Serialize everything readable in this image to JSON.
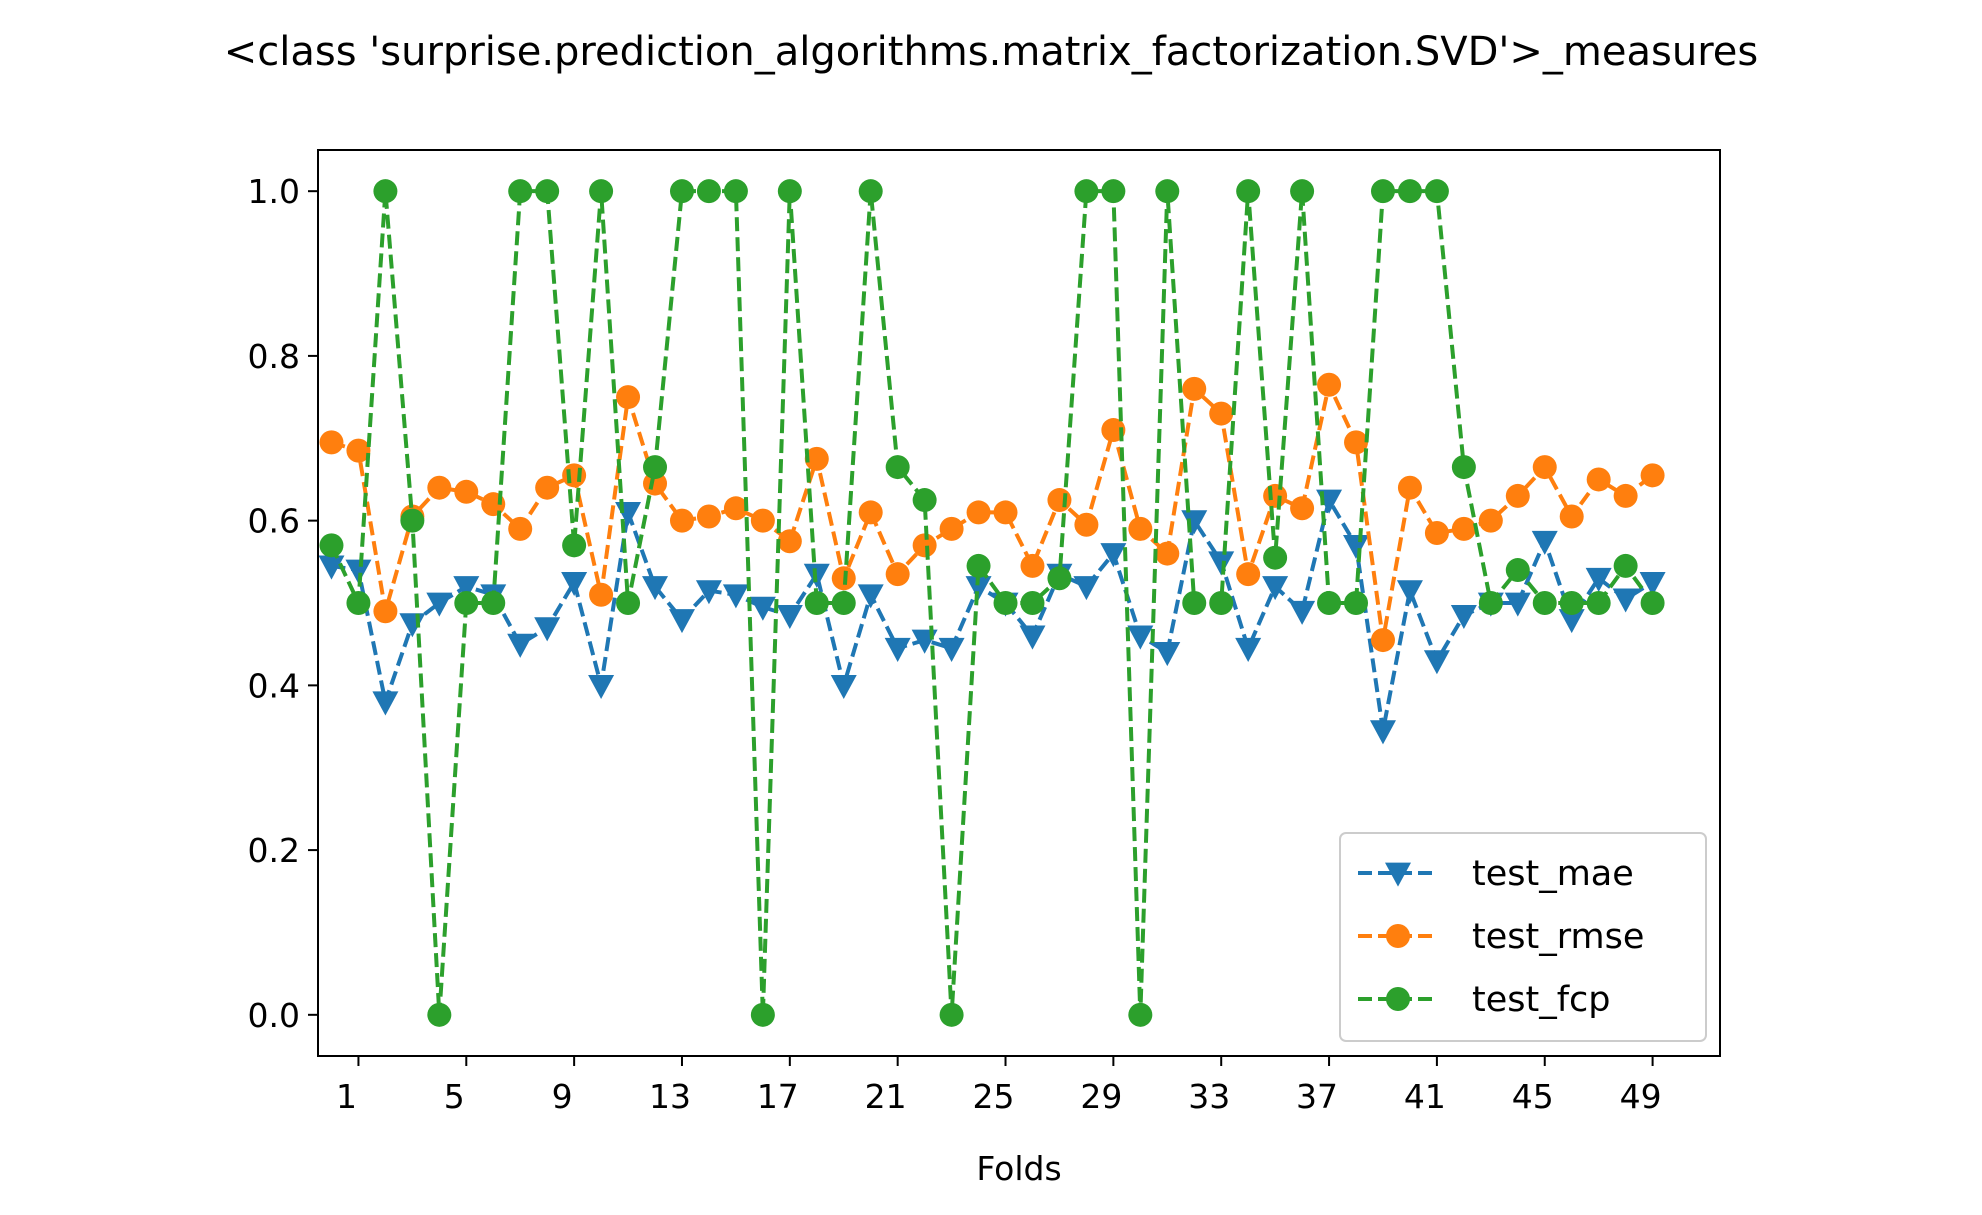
{
  "chart_data": {
    "type": "line",
    "title": "<class 'surprise.prediction_algorithms.matrix_factorization.SVD'>_measures",
    "xlabel": "Folds",
    "ylabel": "",
    "xlim": [
      -0.5,
      51.5
    ],
    "ylim": [
      -0.05,
      1.05
    ],
    "xticks": [
      1,
      5,
      9,
      13,
      17,
      21,
      25,
      29,
      33,
      37,
      41,
      45,
      49
    ],
    "yticks": [
      0.0,
      0.2,
      0.4,
      0.6,
      0.8,
      1.0
    ],
    "ytick_labels": [
      "0.0",
      "0.2",
      "0.4",
      "0.6",
      "0.8",
      "1.0"
    ],
    "grid": false,
    "legend_position": "lower-right",
    "x": [
      0,
      1,
      2,
      3,
      4,
      5,
      6,
      7,
      8,
      9,
      10,
      11,
      12,
      13,
      14,
      15,
      16,
      17,
      18,
      19,
      20,
      21,
      22,
      23,
      24,
      25,
      26,
      27,
      28,
      29,
      30,
      31,
      32,
      33,
      34,
      35,
      36,
      37,
      38,
      39,
      40,
      41,
      42,
      43,
      44,
      45,
      46,
      47,
      48,
      49
    ],
    "series": [
      {
        "name": "test_mae",
        "color": "#1f77b4",
        "marker": "triangle-down",
        "linestyle": "dashed",
        "values": [
          0.545,
          0.54,
          0.38,
          0.475,
          0.5,
          0.52,
          0.51,
          0.45,
          0.47,
          0.525,
          0.4,
          0.61,
          0.52,
          0.48,
          0.515,
          0.51,
          0.495,
          0.485,
          0.535,
          0.4,
          0.51,
          0.445,
          0.455,
          0.445,
          0.52,
          0.5,
          0.46,
          0.535,
          0.52,
          0.56,
          0.46,
          0.44,
          0.6,
          0.55,
          0.445,
          0.52,
          0.49,
          0.625,
          0.57,
          0.345,
          0.515,
          0.43,
          0.485,
          0.5,
          0.5,
          0.575,
          0.48,
          0.53,
          0.505,
          0.525
        ]
      },
      {
        "name": "test_rmse",
        "color": "#ff7f0e",
        "marker": "circle",
        "linestyle": "dashed",
        "values": [
          0.695,
          0.685,
          0.49,
          0.605,
          0.64,
          0.635,
          0.62,
          0.59,
          0.64,
          0.655,
          0.51,
          0.75,
          0.645,
          0.6,
          0.605,
          0.615,
          0.6,
          0.575,
          0.675,
          0.53,
          0.61,
          0.535,
          0.57,
          0.59,
          0.61,
          0.61,
          0.545,
          0.625,
          0.595,
          0.71,
          0.59,
          0.56,
          0.76,
          0.73,
          0.535,
          0.63,
          0.615,
          0.765,
          0.695,
          0.455,
          0.64,
          0.585,
          0.59,
          0.6,
          0.63,
          0.665,
          0.605,
          0.65,
          0.63,
          0.655
        ]
      },
      {
        "name": "test_fcp",
        "color": "#2ca02c",
        "marker": "circle",
        "linestyle": "dashed",
        "values": [
          0.57,
          0.5,
          1.0,
          0.6,
          0.0,
          0.5,
          0.5,
          1.0,
          1.0,
          0.57,
          1.0,
          0.5,
          0.665,
          1.0,
          1.0,
          1.0,
          0.0,
          1.0,
          0.5,
          0.5,
          1.0,
          0.665,
          0.625,
          0.0,
          0.545,
          0.5,
          0.5,
          0.53,
          1.0,
          1.0,
          0.0,
          1.0,
          0.5,
          0.5,
          1.0,
          0.555,
          1.0,
          0.5,
          0.5,
          1.0,
          1.0,
          1.0,
          0.665,
          0.5,
          0.54,
          0.5,
          0.5,
          0.5,
          0.545,
          0.5
        ]
      }
    ]
  }
}
